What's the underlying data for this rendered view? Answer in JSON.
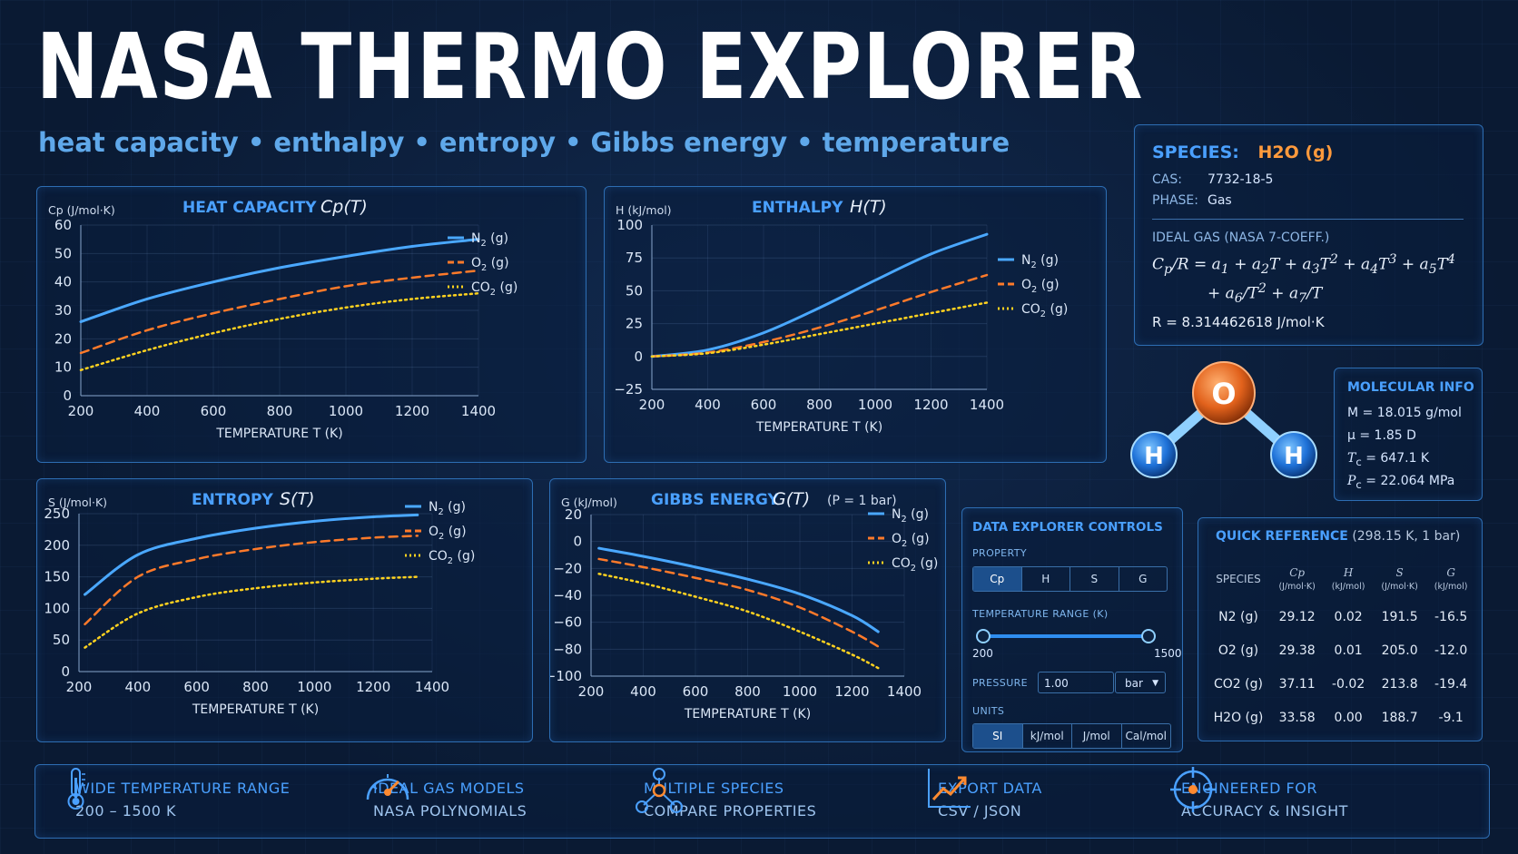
{
  "header": {
    "title": "NASA THERMO EXPLORER",
    "subtitle_items": [
      "heat capacity",
      "enthalpy",
      "entropy",
      "Gibbs energy",
      "temperature"
    ]
  },
  "colors": {
    "n2": "#4aa8ff",
    "o2": "#ff7a2a",
    "co2": "#ffd21f",
    "accent": "#4aa0ff",
    "frame": "#2d6db2"
  },
  "charts": [
    {
      "id": "cp",
      "title": "HEAT CAPACITY",
      "func": "Cp(T)",
      "ylabel": "Cp (J/mol·K)",
      "xlabel": "TEMPERATURE T (K)",
      "note": "",
      "x_ticks": [
        "200",
        "400",
        "600",
        "800",
        "1000",
        "1200",
        "1400"
      ],
      "y_ticks": [
        "60",
        "50",
        "40",
        "30",
        "20",
        "10",
        "0"
      ],
      "legend": [
        "N2 (g)",
        "O2 (g)",
        "CO2 (g)"
      ]
    },
    {
      "id": "h",
      "title": "ENTHALPY",
      "func": "H(T)",
      "ylabel": "H (kJ/mol)",
      "xlabel": "TEMPERATURE T (K)",
      "note": "",
      "x_ticks": [
        "200",
        "400",
        "600",
        "800",
        "1000",
        "1200",
        "1400"
      ],
      "y_ticks": [
        "100",
        "75",
        "50",
        "25",
        "0",
        "−25"
      ],
      "legend": [
        "N2 (g)",
        "O2 (g)",
        "CO2 (g)"
      ]
    },
    {
      "id": "s",
      "title": "ENTROPY",
      "func": "S(T)",
      "ylabel": "S (J/mol·K)",
      "xlabel": "TEMPERATURE T (K)",
      "note": "",
      "x_ticks": [
        "200",
        "400",
        "600",
        "800",
        "1000",
        "1200",
        "1400"
      ],
      "y_ticks": [
        "250",
        "200",
        "150",
        "100",
        "50",
        "0"
      ],
      "legend": [
        "N2 (g)",
        "O2 (g)",
        "CO2 (g)"
      ]
    },
    {
      "id": "g",
      "title": "GIBBS ENERGY",
      "func": "G(T)",
      "ylabel": "G (kJ/mol)",
      "xlabel": "TEMPERATURE T (K)",
      "note": "(P = 1 bar)",
      "x_ticks": [
        "200",
        "400",
        "600",
        "800",
        "1000",
        "1200",
        "1400"
      ],
      "y_ticks": [
        "20",
        "0",
        "−20",
        "−40",
        "−60",
        "−80",
        "−100"
      ],
      "legend": [
        "N2 (g)",
        "O2 (g)",
        "CO2 (g)"
      ]
    }
  ],
  "chart_data": [
    {
      "type": "line",
      "title": "HEAT CAPACITY Cp(T)",
      "xlabel": "TEMPERATURE T (K)",
      "ylabel": "Cp (J/mol·K)",
      "xlim": [
        200,
        1400
      ],
      "ylim": [
        0,
        60
      ],
      "grid": true,
      "legend_position": "top-right",
      "x": [
        200,
        400,
        600,
        800,
        1000,
        1200,
        1400
      ],
      "series": [
        {
          "name": "N2 (g)",
          "style": "solid",
          "values": [
            26,
            34,
            40,
            45,
            49,
            52.5,
            55
          ]
        },
        {
          "name": "O2 (g)",
          "style": "dashed",
          "values": [
            15,
            23,
            29,
            34,
            38.5,
            41.5,
            44
          ]
        },
        {
          "name": "CO2 (g)",
          "style": "dotted",
          "values": [
            9,
            16,
            22,
            27,
            31,
            34,
            36
          ]
        }
      ]
    },
    {
      "type": "line",
      "title": "ENTHALPY H(T)",
      "xlabel": "TEMPERATURE T (K)",
      "ylabel": "H (kJ/mol)",
      "xlim": [
        200,
        1400
      ],
      "ylim": [
        -25,
        100
      ],
      "grid": true,
      "legend_position": "right",
      "x": [
        200,
        400,
        600,
        800,
        1000,
        1200,
        1400
      ],
      "series": [
        {
          "name": "N2 (g)",
          "style": "solid",
          "values": [
            0,
            5,
            18,
            37,
            58,
            78,
            93
          ]
        },
        {
          "name": "O2 (g)",
          "style": "dashed",
          "values": [
            0,
            3,
            11,
            22,
            35,
            49,
            62
          ]
        },
        {
          "name": "CO2 (g)",
          "style": "dotted",
          "values": [
            0,
            2.5,
            9,
            17,
            25,
            33,
            41
          ]
        }
      ]
    },
    {
      "type": "line",
      "title": "ENTROPY S(T)",
      "xlabel": "TEMPERATURE T (K)",
      "ylabel": "S (J/mol·K)",
      "xlim": [
        200,
        1400
      ],
      "ylim": [
        0,
        250
      ],
      "grid": true,
      "legend_position": "right",
      "x": [
        220,
        400,
        600,
        800,
        1000,
        1200,
        1350
      ],
      "series": [
        {
          "name": "N2 (g)",
          "style": "solid",
          "values": [
            122,
            185,
            211,
            227,
            238,
            245,
            248
          ]
        },
        {
          "name": "O2 (g)",
          "style": "dashed",
          "values": [
            75,
            150,
            178,
            194,
            205,
            212,
            215
          ]
        },
        {
          "name": "CO2 (g)",
          "style": "dotted",
          "values": [
            38,
            92,
            118,
            132,
            141,
            147,
            150
          ]
        }
      ]
    },
    {
      "type": "line",
      "title": "GIBBS ENERGY G(T)",
      "xlabel": "TEMPERATURE T (K)",
      "ylabel": "G (kJ/mol)",
      "xlim": [
        200,
        1400
      ],
      "ylim": [
        -100,
        20
      ],
      "grid": true,
      "legend_position": "right",
      "x": [
        230,
        400,
        600,
        800,
        1000,
        1200,
        1300
      ],
      "series": [
        {
          "name": "N2 (g)",
          "style": "solid",
          "values": [
            -5,
            -11,
            -19,
            -28,
            -39,
            -55,
            -67
          ]
        },
        {
          "name": "O2 (g)",
          "style": "dashed",
          "values": [
            -13,
            -19,
            -27,
            -36,
            -49,
            -67,
            -78
          ]
        },
        {
          "name": "CO2 (g)",
          "style": "dotted",
          "values": [
            -24,
            -31,
            -41,
            -52,
            -67,
            -84,
            -94
          ]
        }
      ]
    }
  ],
  "species_card": {
    "label": "SPECIES:",
    "name": "H2O (g)",
    "cas_label": "CAS:",
    "cas": "7732-18-5",
    "phase_label": "PHASE:",
    "phase": "Gas",
    "model_title": "IDEAL GAS (NASA 7-COEFF.)",
    "r_label": "R = 8.314462618 J/mol·K"
  },
  "molecule": {
    "center": "O",
    "left": "H",
    "right": "H"
  },
  "molecular_info": {
    "title": "MOLECULAR INFO",
    "M": "M = 18.015 g/mol",
    "mu": "μ = 1.85 D",
    "Tc": "= 647.1 K",
    "Pc": "= 22.064 MPa"
  },
  "controls": {
    "title": "DATA EXPLORER CONTROLS",
    "property_label": "PROPERTY",
    "properties": [
      "Cp",
      "H",
      "S",
      "G"
    ],
    "property_selected": "Cp",
    "range_label": "TEMPERATURE RANGE (K)",
    "range_min": "200",
    "range_max": "1500",
    "pressure_label": "PRESSURE",
    "pressure_value": "1.00",
    "pressure_unit": "bar",
    "units_label": "UNITS",
    "units": [
      "SI",
      "kJ/mol",
      "J/mol",
      "Cal/mol"
    ],
    "unit_selected": "SI"
  },
  "quick_ref": {
    "title": "QUICK REFERENCE",
    "condition": "(298.15 K, 1 bar)",
    "headers": [
      "SPECIES",
      "Cp",
      "H",
      "S",
      "G"
    ],
    "units": [
      "",
      "(J/mol·K)",
      "(kJ/mol)",
      "(J/mol·K)",
      "(kJ/mol)"
    ],
    "rows": [
      [
        "N2 (g)",
        "29.12",
        "0.02",
        "191.5",
        "-16.5"
      ],
      [
        "O2 (g)",
        "29.38",
        "0.01",
        "205.0",
        "-12.0"
      ],
      [
        "CO2 (g)",
        "37.11",
        "-0.02",
        "213.8",
        "-19.4"
      ],
      [
        "H2O (g)",
        "33.58",
        "0.00",
        "188.7",
        "-9.1"
      ]
    ]
  },
  "features": [
    {
      "icon": "thermometer-icon",
      "line1": "WIDE TEMPERATURE RANGE",
      "line2": "200 – 1500 K"
    },
    {
      "icon": "gauge-icon",
      "line1": "IDEAL GAS MODELS",
      "line2": "NASA POLYNOMIALS"
    },
    {
      "icon": "molecule-network-icon",
      "line1": "MULTIPLE SPECIES",
      "line2": "COMPARE PROPERTIES"
    },
    {
      "icon": "chart-export-icon",
      "line1": "EXPORT DATA",
      "line2": "CSV / JSON"
    },
    {
      "icon": "crosshair-icon",
      "line1": "ENGINEERED FOR",
      "line2": "ACCURACY & INSIGHT"
    }
  ]
}
